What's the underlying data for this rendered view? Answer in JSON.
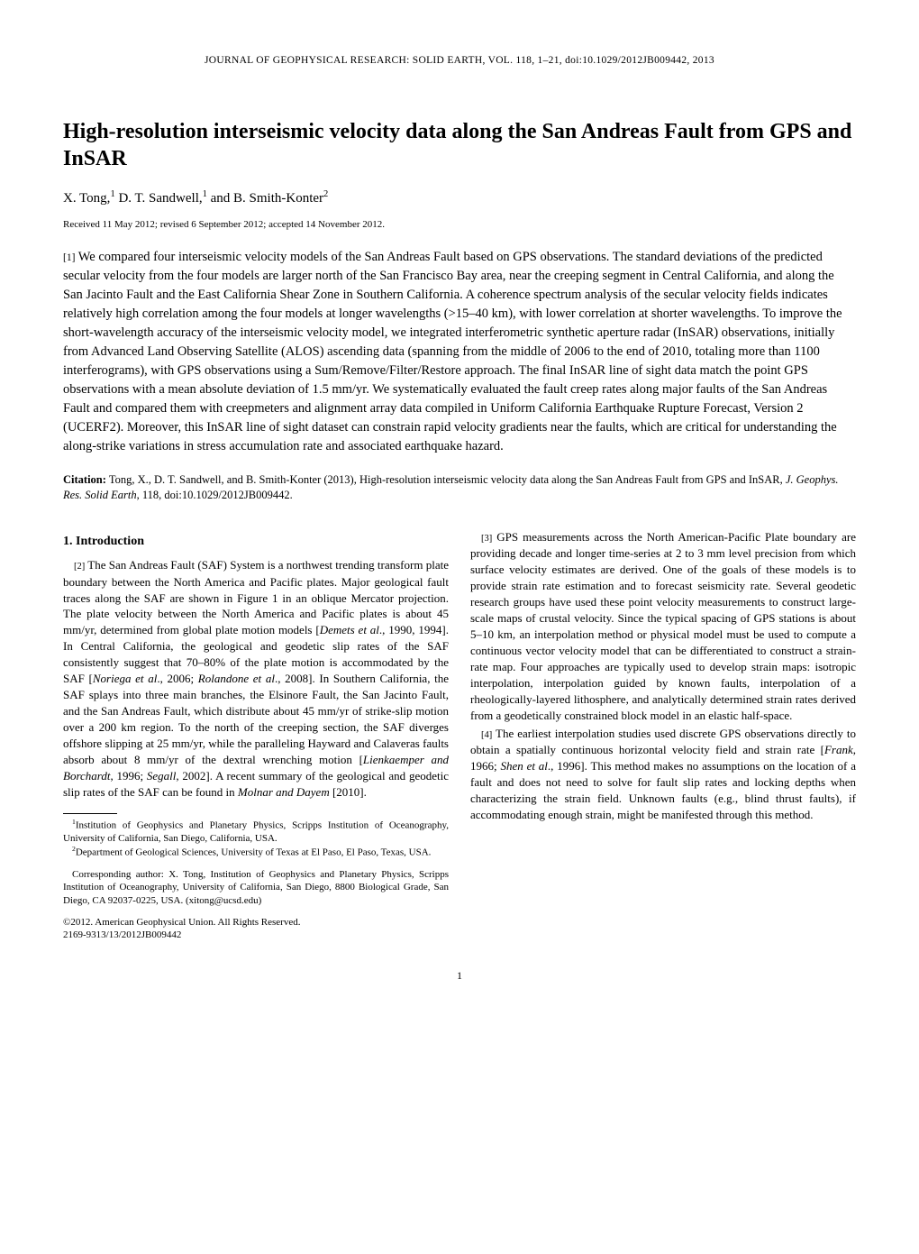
{
  "journal_header": "JOURNAL OF GEOPHYSICAL RESEARCH: SOLID EARTH, VOL. 118, 1–21, doi:10.1029/2012JB009442, 2013",
  "title": "High-resolution interseismic velocity data along the San Andreas Fault from GPS and InSAR",
  "authors_prefix": "X. Tong,",
  "authors_sup1": "1",
  "authors_mid": " D. T. Sandwell,",
  "authors_sup2": "1",
  "authors_and": " and B. Smith-Konter",
  "authors_sup3": "2",
  "received": "Received 11 May 2012; revised 6 September 2012; accepted 14 November 2012.",
  "abstract_num": "[1]",
  "abstract_text": "   We compared four interseismic velocity models of the San Andreas Fault based on GPS observations. The standard deviations of the predicted secular velocity from the four models are larger north of the San Francisco Bay area, near the creeping segment in Central California, and along the San Jacinto Fault and the East California Shear Zone in Southern California. A coherence spectrum analysis of the secular velocity fields indicates relatively high correlation among the four models at longer wavelengths (>15–40 km), with lower correlation at shorter wavelengths. To improve the short-wavelength accuracy of the interseismic velocity model, we integrated interferometric synthetic aperture radar (InSAR) observations, initially from Advanced Land Observing Satellite (ALOS) ascending data (spanning from the middle of 2006 to the end of 2010, totaling more than 1100 interferograms), with GPS observations using a Sum/Remove/Filter/Restore approach. The final InSAR line of sight data match the point GPS observations with a mean absolute deviation of 1.5 mm/yr. We systematically evaluated the fault creep rates along major faults of the San Andreas Fault and compared them with creepmeters and alignment array data compiled in Uniform California Earthquake Rupture Forecast, Version 2 (UCERF2). Moreover, this InSAR line of sight dataset can constrain rapid velocity gradients near the faults, which are critical for understanding the along-strike variations in stress accumulation rate and associated earthquake hazard.",
  "citation_label": "Citation:",
  "citation_text": "  Tong, X., D. T. Sandwell, and B. Smith-Konter (2013), High-resolution interseismic velocity data along the San Andreas Fault from GPS and InSAR, ",
  "citation_journal": "J. Geophys. Res. Solid Earth",
  "citation_suffix": ", 118, doi:10.1029/2012JB009442.",
  "section1_heading": "1.   Introduction",
  "p2_num": "[2]",
  "p2_text": "  The San Andreas Fault (SAF) System is a northwest trending transform plate boundary between the North America and Pacific plates. Major geological fault traces along the SAF are shown in Figure 1 in an oblique Mercator projection. The plate velocity between the North America and Pacific plates is about 45 mm/yr, determined from global plate motion models [",
  "p2_ref1": "Demets et al",
  "p2_text2": "., 1990, 1994]. In Central California, the geological and geodetic slip rates of the SAF consistently suggest that 70–80% of the plate motion is accommodated by the SAF [",
  "p2_ref2": "Noriega et al",
  "p2_text3": "., 2006; ",
  "p2_ref3": "Rolandone et al",
  "p2_text4": "., 2008]. In Southern California, the SAF splays into three main branches, the Elsinore Fault, the San Jacinto Fault, and the San Andreas Fault, which distribute about 45 mm/yr of strike-slip motion over a 200 km region. To the north of the creeping section, the SAF diverges offshore slipping at 25 mm/yr, while the paralleling Hayward and Calaveras faults absorb about 8 mm/yr of the dextral wrenching motion [",
  "p2_ref4": "Lienkaemper and Borchardt",
  "p2_text5": ", 1996; ",
  "p2_ref5": "Segall",
  "p2_text6": ", 2002]. A recent summary of the geological and geodetic slip rates of the SAF can be found in ",
  "p2_ref6": "Molnar and Dayem",
  "p2_text7": " [2010].",
  "p3_num": "[3]",
  "p3_text": "  GPS measurements across the North American-Pacific Plate boundary are providing decade and longer time-series at 2 to 3 mm level precision from which surface velocity estimates are derived. One of the goals of these models is to provide strain rate estimation and to forecast seismicity rate. Several geodetic research groups have used these point velocity measurements to construct large-scale maps of crustal velocity. Since the typical spacing of GPS stations is about 5–10 km, an interpolation method or physical model must be used to compute a continuous vector velocity model that can be differentiated to construct a strain-rate map. Four approaches are typically used to develop strain maps: isotropic interpolation, interpolation guided by known faults, interpolation of a rheologically-layered lithosphere, and analytically determined strain rates derived from a geodetically constrained block model in an elastic half-space.",
  "p4_num": "[4]",
  "p4_text": "  The earliest interpolation studies used discrete GPS observations directly to obtain a spatially continuous horizontal velocity field and strain rate [",
  "p4_ref1": "Frank",
  "p4_text2": ", 1966; ",
  "p4_ref2": "Shen et al",
  "p4_text3": "., 1996]. This method makes no assumptions on the location of a fault and does not need to solve for fault slip rates and locking depths when characterizing the strain field. Unknown faults (e.g., blind thrust faults), if accommodating enough strain, might be manifested through this method.",
  "footnote1_sup": "1",
  "footnote1": "Institution of Geophysics and Planetary Physics, Scripps Institution of Oceanography, University of California, San Diego, California, USA.",
  "footnote2_sup": "2",
  "footnote2": "Department of Geological Sciences, University of Texas at El Paso, El Paso, Texas, USA.",
  "corresponding": "Corresponding author: X. Tong, Institution of Geophysics and Planetary Physics, Scripps Institution of Oceanography, University of California, San Diego, 8800 Biological Grade, San Diego, CA 92037-0225, USA. (xitong@ucsd.edu)",
  "copyright1": "©2012. American Geophysical Union. All Rights Reserved.",
  "copyright2": "2169-9313/13/2012JB009442",
  "page_number": "1"
}
